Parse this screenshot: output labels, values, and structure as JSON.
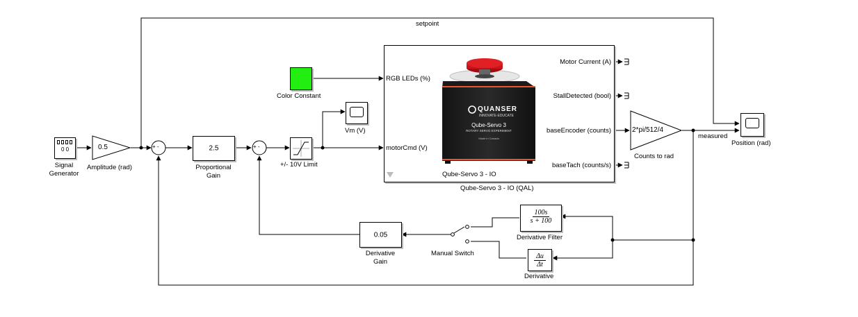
{
  "signals": {
    "setpoint": "setpoint",
    "measured": "measured"
  },
  "blocks": {
    "signal_generator": {
      "label": "Signal\nGenerator",
      "display": "0 0"
    },
    "amplitude": {
      "value": "0.5",
      "label": "Amplitude (rad)"
    },
    "sum1": {
      "signs": "+ -"
    },
    "proportional_gain": {
      "value": "2.5",
      "label": "Proportional\nGain"
    },
    "sum2": {
      "signs": "+ -"
    },
    "limit": {
      "label": "+/- 10V Limit"
    },
    "scope_vm": {
      "label": "Vm (V)"
    },
    "color_constant": {
      "label": "Color Constant",
      "color": "#22ee11"
    },
    "qube": {
      "label": "Qube-Servo 3 - IO (QAL)",
      "inner_label": "Qube-Servo 3 - IO",
      "inputs": [
        "RGB LEDs (%)",
        "motorCmd (V)"
      ],
      "outputs": [
        "Motor Current (A)",
        "StallDetected (bool)",
        "baseEncoder (counts)",
        "baseTach (counts/s)"
      ],
      "image": {
        "brand": "QUANSER",
        "tagline": "INNOVATE·EDUCATE",
        "model": "Qube-Servo 3",
        "subtitle": "ROTARY SERVO EXPERIMENT",
        "footer": "Made in Canada"
      }
    },
    "counts_to_rad": {
      "value": "2*pi/512/4",
      "label": "Counts to rad"
    },
    "scope_position": {
      "label": "Position (rad)"
    },
    "derivative_filter": {
      "num": "100s",
      "den": "s + 100",
      "label": "Derivative Filter"
    },
    "derivative": {
      "num": "Δu",
      "den": "Δt",
      "label": "Derivative"
    },
    "manual_switch": {
      "label": "Manual Switch"
    },
    "derivative_gain": {
      "value": "0.05",
      "label": "Derivative\nGain"
    }
  },
  "colors": {
    "line": "#000000",
    "shadow": "#bdbdbd",
    "stripe": "#e8562a",
    "knob": "#c8151b"
  }
}
